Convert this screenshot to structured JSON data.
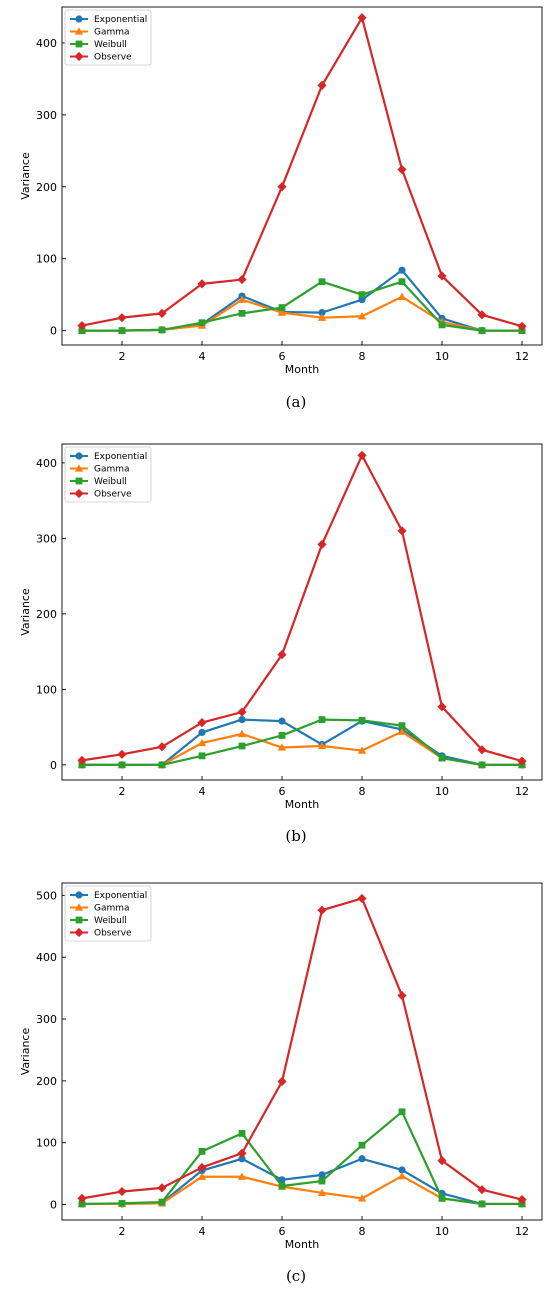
{
  "chart_data": [
    {
      "type": "line",
      "caption": "(a)",
      "xlabel": "Month",
      "ylabel": "Variance",
      "xlim": [
        0.5,
        12.5
      ],
      "ylim": [
        -20,
        450
      ],
      "xticks": [
        2,
        4,
        6,
        8,
        10,
        12
      ],
      "yticks": [
        0,
        100,
        200,
        300,
        400
      ],
      "legend_position": "top-left",
      "x": [
        1,
        2,
        3,
        4,
        5,
        6,
        7,
        8,
        9,
        10,
        11,
        12
      ],
      "series": [
        {
          "name": "Exponential",
          "color": "#1f77b4",
          "marker": "circle",
          "values": [
            0,
            0,
            1,
            9,
            48,
            26,
            25,
            43,
            84,
            17,
            0,
            0
          ]
        },
        {
          "name": "Gamma",
          "color": "#ff7f0e",
          "marker": "triangle",
          "values": [
            0,
            0,
            1,
            7,
            43,
            25,
            18,
            20,
            47,
            12,
            0,
            0
          ]
        },
        {
          "name": "Weibull",
          "color": "#2ca02c",
          "marker": "square",
          "values": [
            0,
            0,
            1,
            11,
            24,
            32,
            68,
            50,
            68,
            8,
            0,
            0
          ]
        },
        {
          "name": "Observe",
          "color": "#d62728",
          "marker": "diamond",
          "values": [
            7,
            18,
            24,
            65,
            71,
            200,
            341,
            435,
            224,
            76,
            22,
            6
          ]
        }
      ]
    },
    {
      "type": "line",
      "caption": "(b)",
      "xlabel": "Month",
      "ylabel": "Variance",
      "xlim": [
        0.5,
        12.5
      ],
      "ylim": [
        -20,
        425
      ],
      "xticks": [
        2,
        4,
        6,
        8,
        10,
        12
      ],
      "yticks": [
        0,
        100,
        200,
        300,
        400
      ],
      "legend_position": "top-left",
      "x": [
        1,
        2,
        3,
        4,
        5,
        6,
        7,
        8,
        9,
        10,
        11,
        12
      ],
      "series": [
        {
          "name": "Exponential",
          "color": "#1f77b4",
          "marker": "circle",
          "values": [
            0,
            0,
            0,
            43,
            60,
            58,
            27,
            58,
            47,
            12,
            0,
            0
          ]
        },
        {
          "name": "Gamma",
          "color": "#ff7f0e",
          "marker": "triangle",
          "values": [
            0,
            0,
            0,
            29,
            41,
            23,
            25,
            19,
            44,
            9,
            0,
            0
          ]
        },
        {
          "name": "Weibull",
          "color": "#2ca02c",
          "marker": "square",
          "values": [
            0,
            0,
            0,
            12,
            25,
            39,
            60,
            59,
            52,
            9,
            0,
            0
          ]
        },
        {
          "name": "Observe",
          "color": "#d62728",
          "marker": "diamond",
          "values": [
            6,
            14,
            24,
            56,
            70,
            146,
            292,
            410,
            310,
            77,
            20,
            5
          ]
        }
      ]
    },
    {
      "type": "line",
      "caption": "(c)",
      "xlabel": "Month",
      "ylabel": "Variance",
      "xlim": [
        0.5,
        12.5
      ],
      "ylim": [
        -25,
        520
      ],
      "xticks": [
        2,
        4,
        6,
        8,
        10,
        12
      ],
      "yticks": [
        0,
        100,
        200,
        300,
        400,
        500
      ],
      "legend_position": "top-left",
      "x": [
        1,
        2,
        3,
        4,
        5,
        6,
        7,
        8,
        9,
        10,
        11,
        12
      ],
      "series": [
        {
          "name": "Exponential",
          "color": "#1f77b4",
          "marker": "circle",
          "values": [
            1,
            1,
            3,
            55,
            74,
            40,
            48,
            74,
            56,
            18,
            1,
            1
          ]
        },
        {
          "name": "Gamma",
          "color": "#ff7f0e",
          "marker": "triangle",
          "values": [
            1,
            1,
            2,
            45,
            45,
            29,
            19,
            10,
            46,
            10,
            1,
            1
          ]
        },
        {
          "name": "Weibull",
          "color": "#2ca02c",
          "marker": "square",
          "values": [
            1,
            2,
            4,
            86,
            115,
            30,
            38,
            96,
            150,
            10,
            1,
            1
          ]
        },
        {
          "name": "Observe",
          "color": "#d62728",
          "marker": "diamond",
          "values": [
            10,
            21,
            27,
            60,
            83,
            199,
            476,
            495,
            338,
            71,
            24,
            8
          ]
        }
      ]
    }
  ]
}
